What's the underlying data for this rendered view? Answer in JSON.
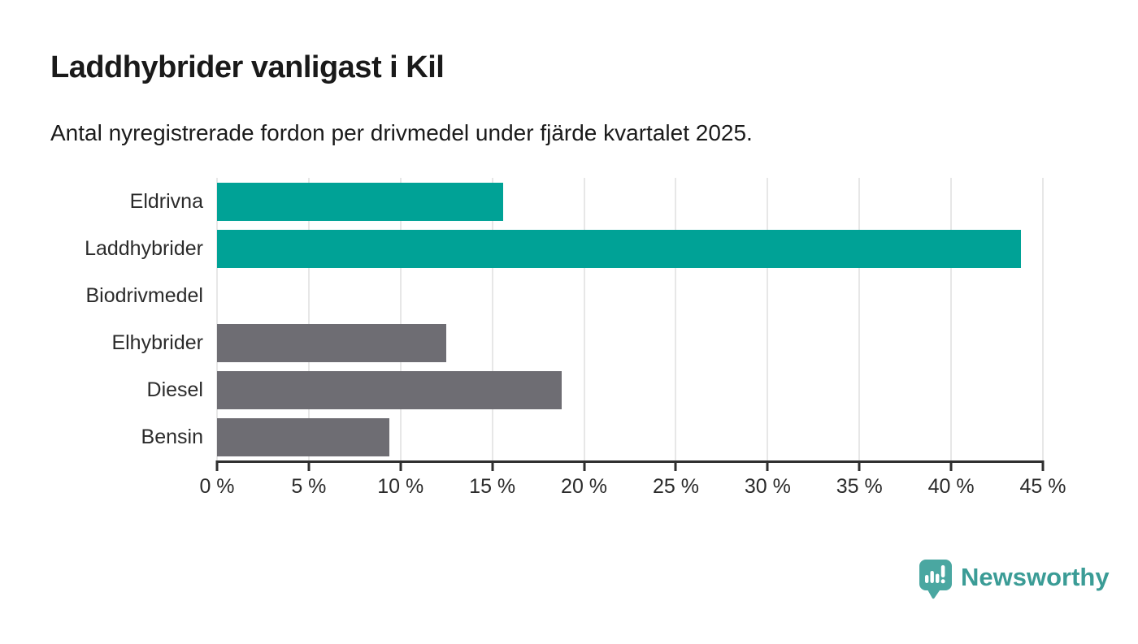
{
  "header": {
    "title": "Laddhybrider vanligast i Kil",
    "subtitle": "Antal nyregistrerade fordon per drivmedel under fjärde kvartalet 2025."
  },
  "chart_data": {
    "type": "bar",
    "orientation": "horizontal",
    "title": "Laddhybrider vanligast i Kil",
    "subtitle": "Antal nyregistrerade fordon per drivmedel under fjärde kvartalet 2025.",
    "categories": [
      "Eldrivna",
      "Laddhybrider",
      "Biodrivmedel",
      "Elhybrider",
      "Diesel",
      "Bensin"
    ],
    "values": [
      15.6,
      43.8,
      0,
      12.5,
      18.8,
      9.4
    ],
    "unit": "%",
    "bar_colors": [
      "#00a296",
      "#00a296",
      "#00a296",
      "#6e6d73",
      "#6e6d73",
      "#6e6d73"
    ],
    "xlim": [
      0,
      45
    ],
    "x_tick_values": [
      0,
      5,
      10,
      15,
      20,
      25,
      30,
      35,
      40,
      45
    ],
    "x_tick_labels": [
      "0 %",
      "5 %",
      "10 %",
      "15 %",
      "20 %",
      "25 %",
      "30 %",
      "35 %",
      "40 %",
      "45 %"
    ],
    "grid": true,
    "legend": "none"
  },
  "colors": {
    "highlight_teal": "#00a296",
    "neutral_gray": "#6e6d73",
    "gridline": "#e7e7e7",
    "axis": "#2f2f2f",
    "text": "#1a1a1a",
    "brand_teal": "#3b9c96",
    "brand_icon_teal": "#4aa7a1"
  },
  "footer": {
    "brand": "Newsworthy"
  }
}
